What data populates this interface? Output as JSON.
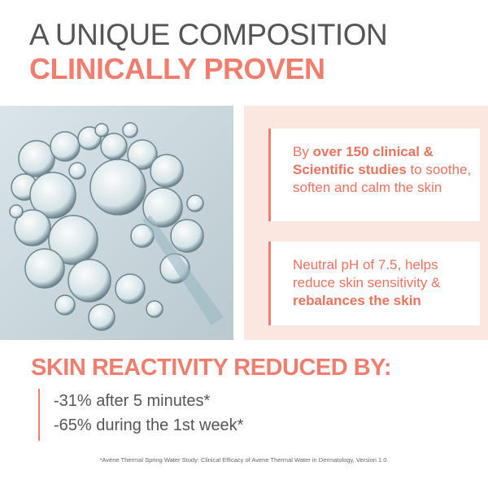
{
  "header": {
    "line1": "A UNIQUE COMPOSITION",
    "line2": "CLINICALLY PROVEN"
  },
  "panels": [
    {
      "segments": [
        {
          "text": "By ",
          "bold": false
        },
        {
          "text": "over 150 clinical & Scientific studies",
          "bold": true
        },
        {
          "text": " to soothe, soften and calm the skin",
          "bold": false
        }
      ]
    },
    {
      "segments": [
        {
          "text": "Neutral pH of 7.5, helps reduce skin sensitivity & ",
          "bold": false
        },
        {
          "text": "rebalances the skin",
          "bold": true
        }
      ]
    }
  ],
  "stats": {
    "title": "SKIN REACTIVITY REDUCED BY:",
    "items": [
      "-31% after 5 minutes*",
      "-65% during the 1st week*"
    ]
  },
  "footnote": "*Avène Thermal Spring Water Study: Clinical Efficacy of Avene Thermal Water in Dermatology, Version 1.0."
}
